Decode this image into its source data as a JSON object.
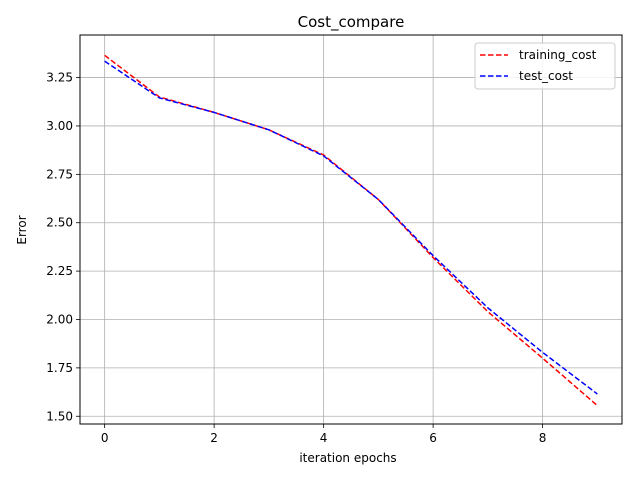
{
  "chart_data": {
    "type": "line",
    "title": "Cost_compare",
    "xlabel": "iteration epochs",
    "ylabel": "Error",
    "xlim": [
      -0.45,
      9.45
    ],
    "ylim": [
      1.46,
      3.47
    ],
    "xticks": [
      0,
      2,
      4,
      6,
      8
    ],
    "yticks": [
      1.5,
      1.75,
      2.0,
      2.25,
      2.5,
      2.75,
      3.0,
      3.25
    ],
    "xtick_labels": [
      "0",
      "2",
      "4",
      "6",
      "8"
    ],
    "ytick_labels": [
      "1.50",
      "1.75",
      "2.00",
      "2.25",
      "2.50",
      "2.75",
      "3.00",
      "3.25"
    ],
    "grid": true,
    "legend_position": "top-right",
    "x": [
      0,
      1,
      2,
      3,
      4,
      5,
      6,
      7,
      8,
      9
    ],
    "series": [
      {
        "name": "training_cost",
        "color": "#ff0000",
        "style": "dashed",
        "values": [
          3.365,
          3.15,
          3.07,
          2.98,
          2.85,
          2.62,
          2.32,
          2.04,
          1.8,
          1.555
        ]
      },
      {
        "name": "test_cost",
        "color": "#0000ff",
        "style": "dashed",
        "values": [
          3.335,
          3.145,
          3.07,
          2.98,
          2.845,
          2.62,
          2.33,
          2.06,
          1.83,
          1.615
        ]
      }
    ]
  }
}
